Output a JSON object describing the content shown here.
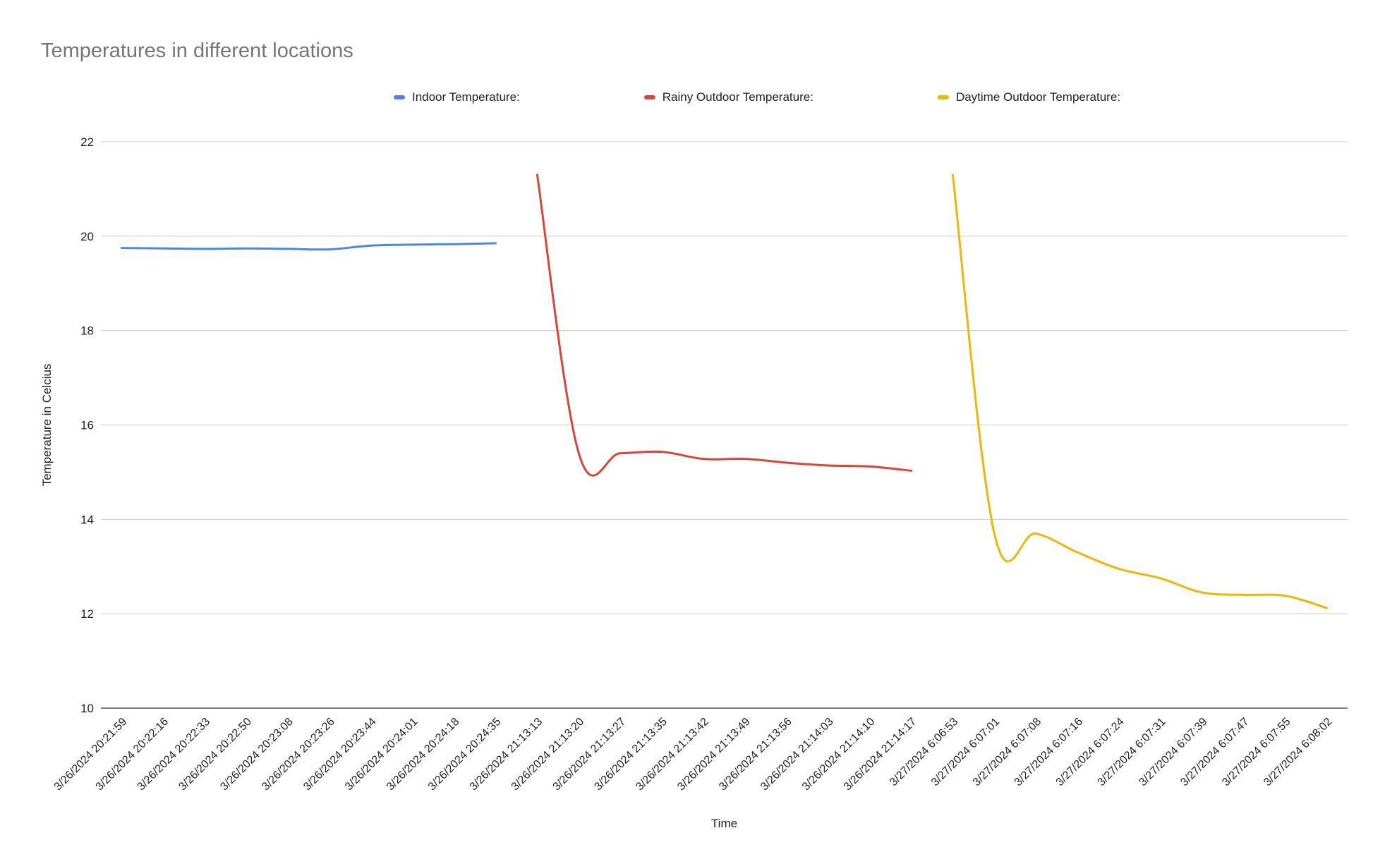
{
  "chart_data": {
    "type": "line",
    "title": "Temperatures in different locations",
    "xlabel": "Time",
    "ylabel": "Temperature in Celcius",
    "ylim": [
      10,
      22
    ],
    "yticks": [
      10,
      12,
      14,
      16,
      18,
      20,
      22
    ],
    "grid": true,
    "legend_position": "top",
    "categories": [
      "3/26/2024 20:21:59",
      "3/26/2024 20:22:16",
      "3/26/2024 20:22:33",
      "3/26/2024 20:22:50",
      "3/26/2024 20:23:08",
      "3/26/2024 20:23:26",
      "3/26/2024 20:23:44",
      "3/26/2024 20:24:01",
      "3/26/2024 20:24:18",
      "3/26/2024 20:24:35",
      "3/26/2024 21:13:13",
      "3/26/2024 21:13:20",
      "3/26/2024 21:13:27",
      "3/26/2024 21:13:35",
      "3/26/2024 21:13:42",
      "3/26/2024 21:13:49",
      "3/26/2024 21:13:56",
      "3/26/2024 21:14:03",
      "3/26/2024 21:14:10",
      "3/26/2024 21:14:17",
      "3/27/2024 6:06:53",
      "3/27/2024 6:07:01",
      "3/27/2024 6:07:08",
      "3/27/2024 6:07:16",
      "3/27/2024 6:07:24",
      "3/27/2024 6:07:31",
      "3/27/2024 6:07:39",
      "3/27/2024 6:07:47",
      "3/27/2024 6:07:55",
      "3/27/2024 6:08:02"
    ],
    "series": [
      {
        "name": "Indoor Temperature:",
        "color": "#4a86e8",
        "values": [
          19.75,
          19.74,
          19.73,
          19.74,
          19.73,
          19.72,
          19.8,
          19.82,
          19.83,
          19.85,
          null,
          null,
          null,
          null,
          null,
          null,
          null,
          null,
          null,
          null,
          null,
          null,
          null,
          null,
          null,
          null,
          null,
          null,
          null,
          null
        ]
      },
      {
        "name": "Rainy Outdoor Temperature:",
        "color": "#db4437",
        "values": [
          null,
          null,
          null,
          null,
          null,
          null,
          null,
          null,
          null,
          null,
          21.3,
          15.4,
          15.4,
          15.43,
          15.28,
          15.28,
          15.2,
          15.14,
          15.12,
          15.03,
          null,
          null,
          null,
          null,
          null,
          null,
          null,
          null,
          null,
          null
        ]
      },
      {
        "name": "Daytime Outdoor Temperature:",
        "color": "#f4b400",
        "values": [
          null,
          null,
          null,
          null,
          null,
          null,
          null,
          null,
          null,
          null,
          null,
          null,
          null,
          null,
          null,
          null,
          null,
          null,
          null,
          null,
          21.3,
          13.7,
          13.7,
          13.3,
          12.95,
          12.75,
          12.45,
          12.4,
          12.38,
          12.12
        ]
      }
    ]
  }
}
